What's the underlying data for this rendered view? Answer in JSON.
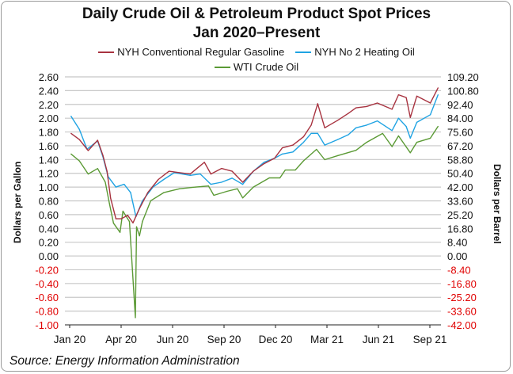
{
  "chart_data": {
    "type": "line",
    "title": "Daily Crude Oil & Petroleum Product Spot Prices",
    "subtitle": "Jan 2020–Present",
    "ylabel": "Dollars per Gallon",
    "ylabel_right": "Dollars per Barrel",
    "ylim": [
      -1.0,
      2.6
    ],
    "ylim_right": [
      -42.0,
      109.2
    ],
    "yticks": [
      "2.60",
      "2.40",
      "2.20",
      "2.00",
      "1.80",
      "1.60",
      "1.40",
      "1.20",
      "1.00",
      "0.80",
      "0.60",
      "0.40",
      "0.20",
      "0.00",
      "-0.20",
      "-0.40",
      "-0.60",
      "-0.80",
      "-1.00"
    ],
    "yticks_right": [
      "109.20",
      "100.80",
      "92.40",
      "84.00",
      "75.60",
      "67.20",
      "58.80",
      "50.40",
      "42.00",
      "33.60",
      "25.20",
      "16.80",
      "8.40",
      "0.00",
      "-8.40",
      "-16.80",
      "-25.20",
      "-33.60",
      "-42.00"
    ],
    "xticks": [
      "Jan 20",
      "Apr 20",
      "Jun 20",
      "Sep 20",
      "Dec 20",
      "Mar 21",
      "Jun 21",
      "Sep 21"
    ],
    "negative_tick_color": "#e00000",
    "grid": true,
    "legend_placement": "top",
    "source": "Source: Energy Information Administration",
    "series": [
      {
        "name": "NYH Conventional Regular Gasoline",
        "axis": "left",
        "unit": "$/gal",
        "color": "#a83340",
        "points": [
          [
            "2020-01-02",
            1.78
          ],
          [
            "2020-01-16",
            1.69
          ],
          [
            "2020-01-31",
            1.53
          ],
          [
            "2020-02-16",
            1.68
          ],
          [
            "2020-02-25",
            1.46
          ],
          [
            "2020-03-03",
            1.23
          ],
          [
            "2020-03-09",
            0.84
          ],
          [
            "2020-03-18",
            0.54
          ],
          [
            "2020-03-27",
            0.54
          ],
          [
            "2020-04-07",
            0.59
          ],
          [
            "2020-04-16",
            0.48
          ],
          [
            "2020-04-27",
            0.69
          ],
          [
            "2020-05-11",
            0.92
          ],
          [
            "2020-05-29",
            1.11
          ],
          [
            "2020-06-16",
            1.23
          ],
          [
            "2020-07-04",
            1.21
          ],
          [
            "2020-07-22",
            1.19
          ],
          [
            "2020-08-15",
            1.36
          ],
          [
            "2020-08-26",
            1.19
          ],
          [
            "2020-09-13",
            1.27
          ],
          [
            "2020-10-01",
            1.23
          ],
          [
            "2020-10-19",
            1.07
          ],
          [
            "2020-11-06",
            1.23
          ],
          [
            "2020-11-24",
            1.34
          ],
          [
            "2020-12-12",
            1.42
          ],
          [
            "2020-12-25",
            1.57
          ],
          [
            "2021-01-12",
            1.61
          ],
          [
            "2021-01-30",
            1.73
          ],
          [
            "2021-02-12",
            1.9
          ],
          [
            "2021-02-23",
            2.21
          ],
          [
            "2021-03-07",
            1.86
          ],
          [
            "2021-03-29",
            1.97
          ],
          [
            "2021-04-16",
            2.07
          ],
          [
            "2021-04-29",
            2.15
          ],
          [
            "2021-05-17",
            2.17
          ],
          [
            "2021-06-04",
            2.22
          ],
          [
            "2021-06-29",
            2.13
          ],
          [
            "2021-07-10",
            2.34
          ],
          [
            "2021-07-23",
            2.3
          ],
          [
            "2021-07-30",
            2.01
          ],
          [
            "2021-08-10",
            2.32
          ],
          [
            "2021-09-02",
            2.22
          ],
          [
            "2021-09-15",
            2.44
          ]
        ]
      },
      {
        "name": "NYH No 2 Heating Oil",
        "axis": "left",
        "unit": "$/gal",
        "color": "#1fa3e3",
        "points": [
          [
            "2020-01-02",
            2.03
          ],
          [
            "2020-01-16",
            1.84
          ],
          [
            "2020-01-29",
            1.55
          ],
          [
            "2020-02-16",
            1.67
          ],
          [
            "2020-02-25",
            1.44
          ],
          [
            "2020-03-05",
            1.15
          ],
          [
            "2020-03-18",
            1.0
          ],
          [
            "2020-04-01",
            1.04
          ],
          [
            "2020-04-12",
            0.92
          ],
          [
            "2020-04-21",
            0.57
          ],
          [
            "2020-05-02",
            0.8
          ],
          [
            "2020-05-20",
            1.0
          ],
          [
            "2020-06-07",
            1.11
          ],
          [
            "2020-06-25",
            1.21
          ],
          [
            "2020-07-22",
            1.17
          ],
          [
            "2020-08-08",
            1.19
          ],
          [
            "2020-08-26",
            1.04
          ],
          [
            "2020-09-13",
            1.07
          ],
          [
            "2020-10-01",
            1.13
          ],
          [
            "2020-10-19",
            1.04
          ],
          [
            "2020-11-06",
            1.23
          ],
          [
            "2020-11-24",
            1.36
          ],
          [
            "2020-12-12",
            1.42
          ],
          [
            "2020-12-25",
            1.48
          ],
          [
            "2021-01-12",
            1.51
          ],
          [
            "2021-01-30",
            1.65
          ],
          [
            "2021-02-12",
            1.78
          ],
          [
            "2021-02-23",
            1.78
          ],
          [
            "2021-03-07",
            1.61
          ],
          [
            "2021-03-29",
            1.69
          ],
          [
            "2021-04-16",
            1.76
          ],
          [
            "2021-04-29",
            1.86
          ],
          [
            "2021-05-17",
            1.9
          ],
          [
            "2021-06-04",
            1.96
          ],
          [
            "2021-06-29",
            1.82
          ],
          [
            "2021-07-10",
            2.0
          ],
          [
            "2021-07-23",
            1.88
          ],
          [
            "2021-07-30",
            1.71
          ],
          [
            "2021-08-10",
            1.94
          ],
          [
            "2021-09-02",
            2.05
          ],
          [
            "2021-09-15",
            2.34
          ]
        ]
      },
      {
        "name": "WTI Crude Oil",
        "axis": "right",
        "unit": "$/bbl",
        "color": "#5b9a35",
        "points": [
          [
            "2020-01-02",
            62.2
          ],
          [
            "2020-01-16",
            58.0
          ],
          [
            "2020-01-31",
            50.0
          ],
          [
            "2020-02-16",
            53.3
          ],
          [
            "2020-02-29",
            45.0
          ],
          [
            "2020-03-07",
            32.0
          ],
          [
            "2020-03-14",
            20.0
          ],
          [
            "2020-03-25",
            14.4
          ],
          [
            "2020-03-30",
            27.3
          ],
          [
            "2020-04-10",
            21.0
          ],
          [
            "2020-04-20",
            -37.6
          ],
          [
            "2020-04-22",
            17.8
          ],
          [
            "2020-04-27",
            12.3
          ],
          [
            "2020-05-02",
            21.0
          ],
          [
            "2020-05-16",
            33.7
          ],
          [
            "2020-06-07",
            38.6
          ],
          [
            "2020-07-04",
            41.0
          ],
          [
            "2020-07-31",
            42.0
          ],
          [
            "2020-08-22",
            42.7
          ],
          [
            "2020-08-31",
            37.0
          ],
          [
            "2020-09-22",
            39.4
          ],
          [
            "2020-10-10",
            41.0
          ],
          [
            "2020-10-19",
            35.4
          ],
          [
            "2020-11-06",
            42.0
          ],
          [
            "2020-12-03",
            47.6
          ],
          [
            "2020-12-21",
            47.6
          ],
          [
            "2020-12-30",
            52.4
          ],
          [
            "2021-01-16",
            52.4
          ],
          [
            "2021-01-30",
            58.0
          ],
          [
            "2021-02-21",
            65.0
          ],
          [
            "2021-03-07",
            58.7
          ],
          [
            "2021-03-29",
            61.2
          ],
          [
            "2021-04-29",
            64.4
          ],
          [
            "2021-05-17",
            69.3
          ],
          [
            "2021-06-13",
            74.7
          ],
          [
            "2021-06-29",
            66.7
          ],
          [
            "2021-07-10",
            73.2
          ],
          [
            "2021-07-30",
            62.9
          ],
          [
            "2021-08-10",
            69.3
          ],
          [
            "2021-09-02",
            71.8
          ],
          [
            "2021-09-15",
            79.0
          ]
        ]
      }
    ]
  }
}
